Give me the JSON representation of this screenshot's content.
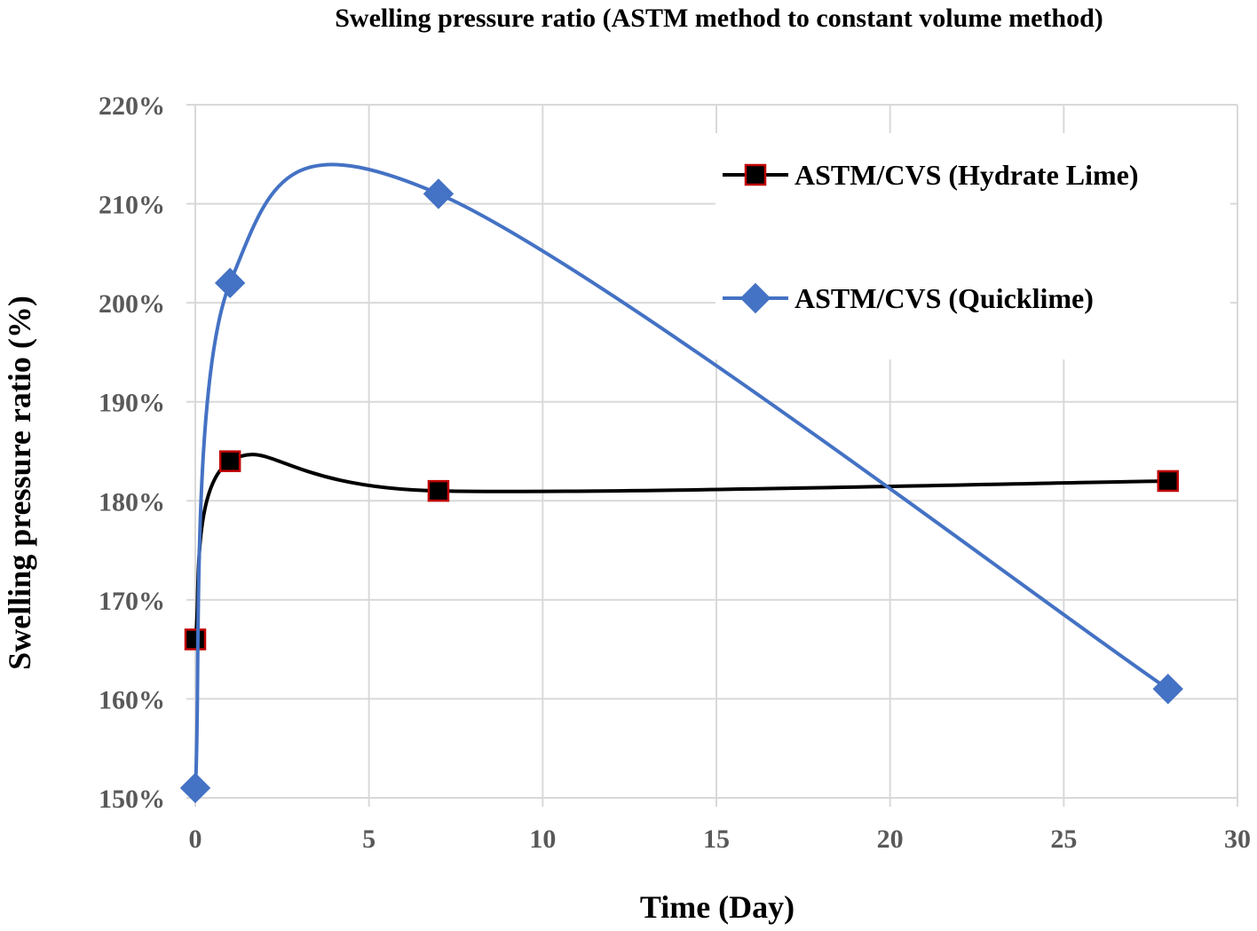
{
  "chart_data": {
    "type": "line",
    "title": "Swelling pressure ratio (ASTM method to constant volume method)",
    "xlabel": "Time (Day)",
    "ylabel": "Swelling pressure ratio (%)",
    "xlim": [
      0,
      30
    ],
    "ylim": [
      150,
      220
    ],
    "x_ticks": [
      0,
      5,
      10,
      15,
      20,
      25,
      30
    ],
    "y_ticks": [
      150,
      160,
      170,
      180,
      190,
      200,
      210,
      220
    ],
    "y_tick_labels": [
      "150%",
      "160%",
      "170%",
      "180%",
      "190%",
      "200%",
      "210%",
      "220%"
    ],
    "x_tick_labels": [
      "0",
      "5",
      "10",
      "15",
      "20",
      "25",
      "30"
    ],
    "grid": true,
    "smoothed": true,
    "legend_position": "top-right",
    "series": [
      {
        "name": "ASTM/CVS (Hydrate Lime)",
        "color": "#000000",
        "marker": "square",
        "marker_fill": "#000000",
        "marker_edge": "#c00000",
        "x": [
          0,
          1,
          7,
          28
        ],
        "y": [
          166,
          184,
          181,
          182
        ]
      },
      {
        "name": "ASTM/CVS (Quicklime)",
        "color": "#4472c4",
        "marker": "diamond",
        "marker_fill": "#4472c4",
        "marker_edge": "#4472c4",
        "x": [
          0,
          1,
          7,
          28
        ],
        "y": [
          151,
          202,
          211,
          161
        ]
      }
    ]
  }
}
